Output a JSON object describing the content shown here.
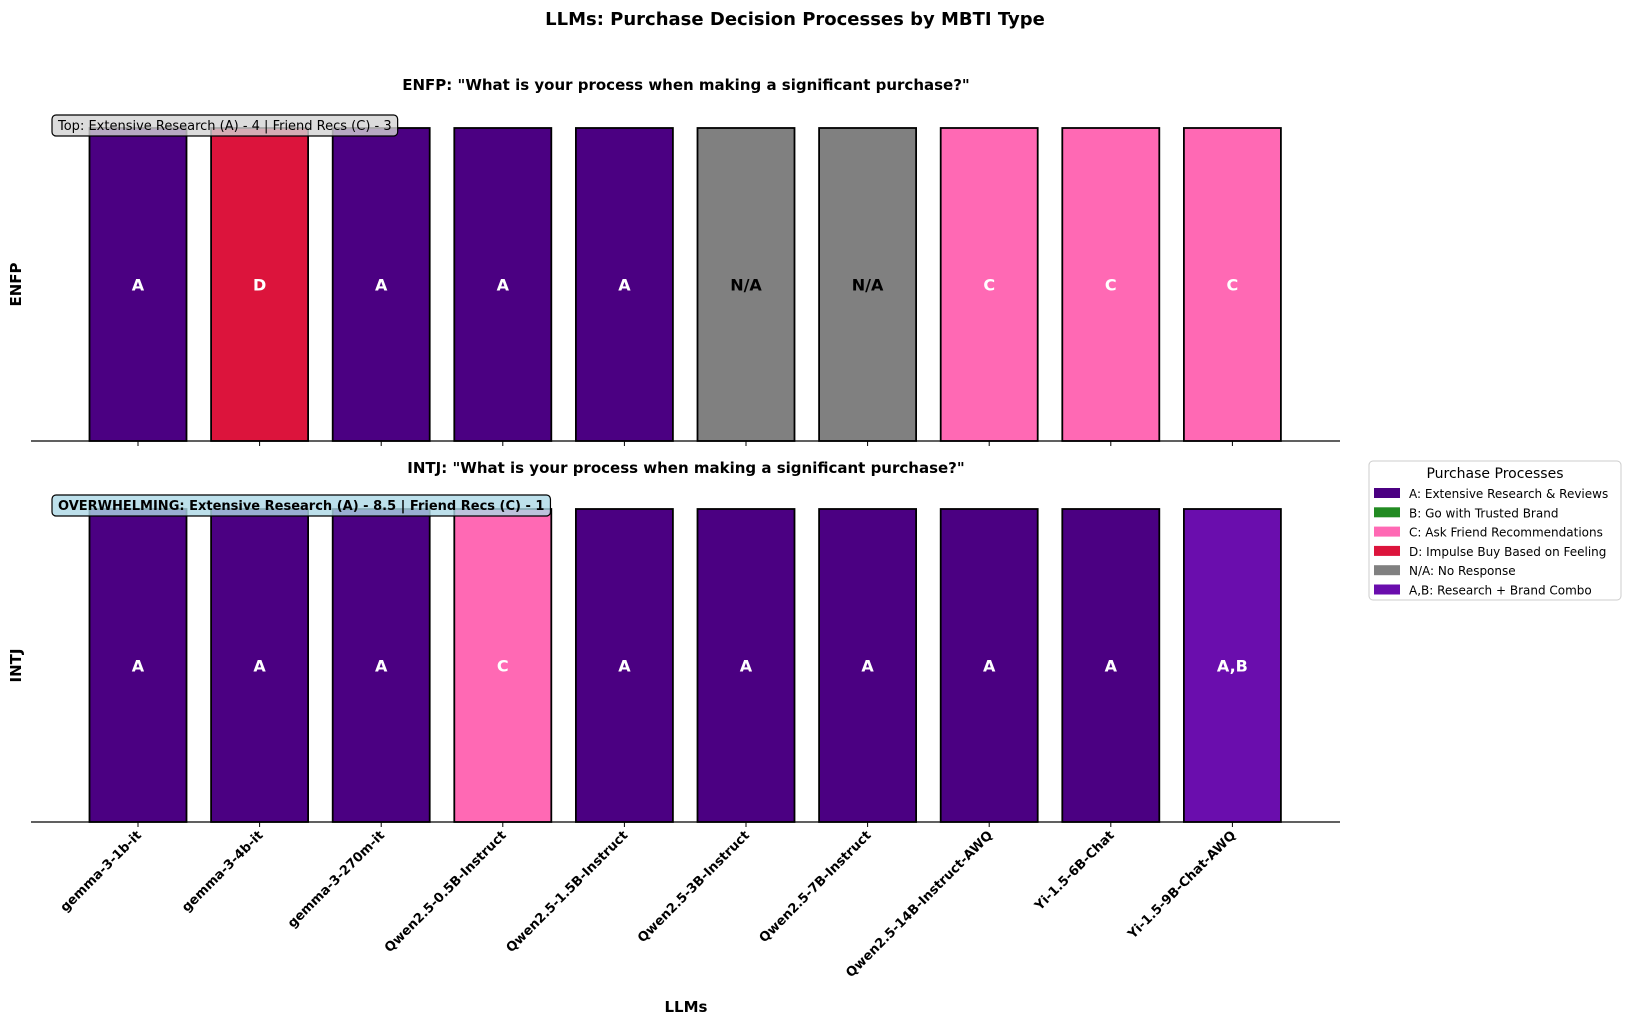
{
  "chart_data": [
    {
      "type": "bar",
      "title": "LLMs: Purchase Decision Processes by MBTI Type",
      "xlabel": "LLMs",
      "categories": [
        "gemma-3-1b-it",
        "gemma-3-4b-it",
        "gemma-3-270m-it",
        "Qwen2.5-0.5B-Instruct",
        "Qwen2.5-1.5B-Instruct",
        "Qwen2.5-3B-Instruct",
        "Qwen2.5-7B-Instruct",
        "Qwen2.5-14B-Instruct-AWQ",
        "Yi-1.5-6B-Chat",
        "Yi-1.5-9B-Chat-AWQ"
      ],
      "panels": [
        {
          "ylabel": "ENFP",
          "subtitle": "ENFP: \"What is your process when making a significant purchase?\"",
          "annotation": "Top: Extensive Research (A) - 4 | Friend Recs (C) - 3",
          "annotation_bg": "#d3d3d3",
          "values": [
            1,
            1,
            1,
            1,
            1,
            1,
            1,
            1,
            1,
            1
          ],
          "labels": [
            "A",
            "D",
            "A",
            "A",
            "A",
            "N/A",
            "N/A",
            "C",
            "C",
            "C"
          ]
        },
        {
          "ylabel": "INTJ",
          "subtitle": "INTJ: \"What is your process when making a significant purchase?\"",
          "annotation": "OVERWHELMING: Extensive Research (A) - 8.5 | Friend Recs (C) - 1",
          "annotation_bg": "#add8e6",
          "values": [
            1,
            1,
            1,
            1,
            1,
            1,
            1,
            1,
            1,
            1
          ],
          "labels": [
            "A",
            "A",
            "A",
            "C",
            "A",
            "A",
            "A",
            "A",
            "A",
            "A,B"
          ]
        }
      ],
      "legend": {
        "title": "Purchase Processes",
        "placement": "right",
        "entries": [
          {
            "key": "A",
            "label": "A: Extensive Research & Reviews",
            "color": "#4b0082"
          },
          {
            "key": "B",
            "label": "B: Go with Trusted Brand",
            "color": "#228b22"
          },
          {
            "key": "C",
            "label": "C: Ask Friend Recommendations",
            "color": "#ff69b4"
          },
          {
            "key": "D",
            "label": "D: Impulse Buy Based on Feeling",
            "color": "#dc143c"
          },
          {
            "key": "N/A",
            "label": "N/A: No Response",
            "color": "#808080"
          },
          {
            "key": "A,B",
            "label": "A,B: Research + Brand Combo",
            "color": "#6a0dad"
          }
        ]
      }
    }
  ]
}
